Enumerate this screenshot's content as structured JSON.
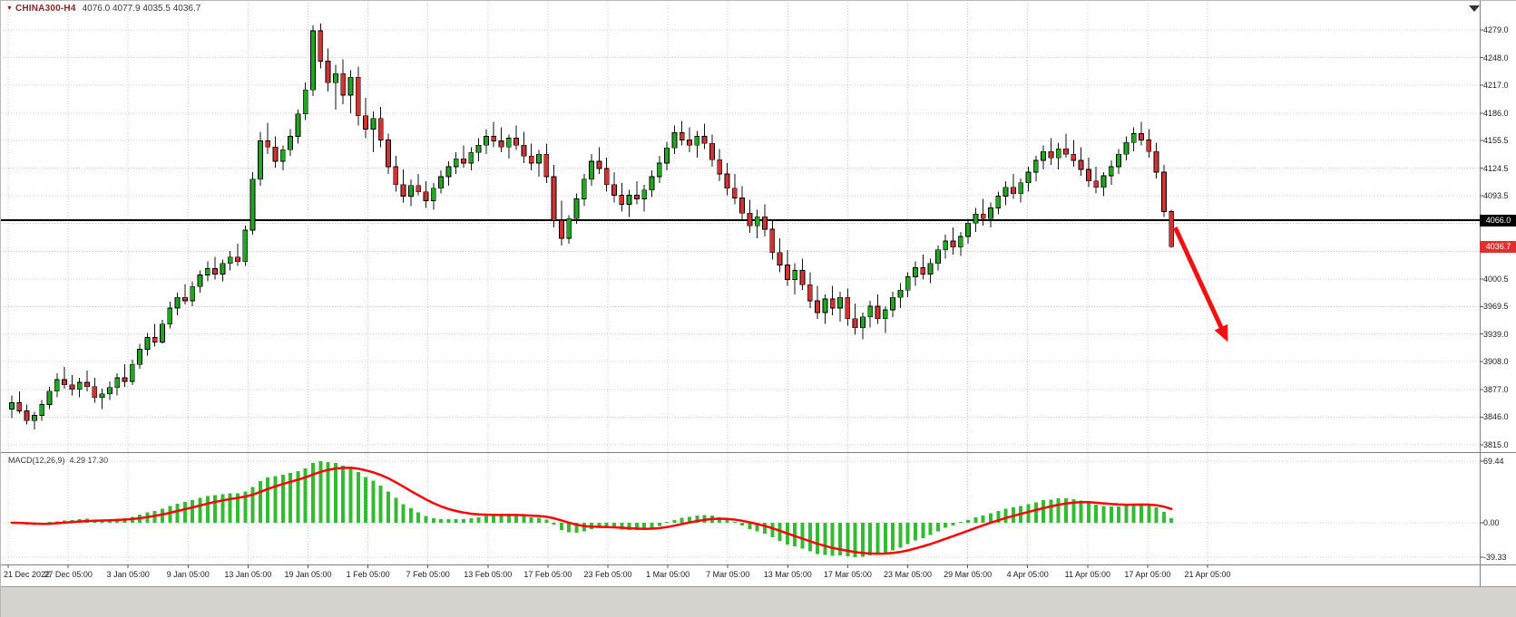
{
  "header": {
    "symbol": "CHINA300-H4",
    "ohlc": "4076.0 4077.9 4035.5 4036.7"
  },
  "macd": {
    "title": "MACD(12,26,9)",
    "values_text": "4.29 17.30"
  },
  "chart_data": {
    "type": "candlestick",
    "title": "CHINA300-H4",
    "symbol": "CHINA300",
    "timeframe": "H4",
    "last_bar_ohlc": [
      4076.0,
      4077.9,
      4035.5,
      4036.7
    ],
    "price_axis": {
      "labels": [
        {
          "text": "4279.0",
          "value": 4279.0
        },
        {
          "text": "4248.0",
          "value": 4248.0
        },
        {
          "text": "4217.0",
          "value": 4217.0
        },
        {
          "text": "4186.0",
          "value": 4186.0
        },
        {
          "text": "4155.5",
          "value": 4155.5
        },
        {
          "text": "4124.5",
          "value": 4124.5
        },
        {
          "text": "4093.5",
          "value": 4093.5
        },
        {
          "text": "4000.5",
          "value": 4000.5
        },
        {
          "text": "3969.5",
          "value": 3969.5
        },
        {
          "text": "3939.0",
          "value": 3939.0
        },
        {
          "text": "3908.0",
          "value": 3908.0
        },
        {
          "text": "3877.0",
          "value": 3877.0
        },
        {
          "text": "3846.0",
          "value": 3846.0
        },
        {
          "text": "3815.0",
          "value": 3815.0
        }
      ],
      "grid_extra": [
        4062.5,
        4031.5
      ]
    },
    "time_axis": {
      "labels": [
        "21 Dec 2022",
        "27 Dec 05:00",
        "3 Jan 05:00",
        "9 Jan 05:00",
        "13 Jan 05:00",
        "19 Jan 05:00",
        "1 Feb 05:00",
        "7 Feb 05:00",
        "13 Feb 05:00",
        "17 Feb 05:00",
        "23 Feb 05:00",
        "1 Mar 05:00",
        "7 Mar 05:00",
        "13 Mar 05:00",
        "17 Mar 05:00",
        "23 Mar 05:00",
        "29 Mar 05:00",
        "4 Apr 05:00",
        "11 Apr 05:00",
        "17 Apr 05:00",
        "21 Apr 05:00"
      ]
    },
    "horizontal_line": {
      "value": 4066.0,
      "label": "4066.0",
      "color": "#000000"
    },
    "current_price": {
      "value": 4036.7,
      "label": "4036.7",
      "tag_color": "#e02f2f"
    },
    "indicator": {
      "name": "MACD",
      "params": [
        12,
        26,
        9
      ],
      "title": "MACD(12,26,9)",
      "display_values": "4.29 17.30",
      "axis_labels": [
        {
          "text": "69.44",
          "value": 69.44
        },
        {
          "text": "0.00",
          "value": 0
        },
        {
          "text": "-39.33",
          "value": -39.33
        }
      ],
      "histogram_color": "#33bb33",
      "signal_color": "#ff0000"
    },
    "annotations": [
      {
        "type": "arrow",
        "color": "#f01212",
        "from": {
          "bar": 154.5,
          "price": 4058
        },
        "to": {
          "bar": 161.5,
          "price": 3930
        }
      }
    ],
    "colors": {
      "up": "#22a522",
      "down": "#cf3333",
      "wick": "#111111",
      "grid": "#c8c8c8",
      "background": "#ffffff",
      "divider": "#808080"
    },
    "candles": [
      [
        3855,
        3870,
        3845,
        3862
      ],
      [
        3862,
        3875,
        3850,
        3853
      ],
      [
        3853,
        3860,
        3838,
        3842
      ],
      [
        3842,
        3852,
        3832,
        3848
      ],
      [
        3848,
        3865,
        3842,
        3860
      ],
      [
        3860,
        3880,
        3855,
        3875
      ],
      [
        3875,
        3895,
        3868,
        3888
      ],
      [
        3888,
        3902,
        3878,
        3882
      ],
      [
        3882,
        3893,
        3870,
        3877
      ],
      [
        3877,
        3890,
        3868,
        3885
      ],
      [
        3885,
        3898,
        3875,
        3880
      ],
      [
        3880,
        3890,
        3862,
        3868
      ],
      [
        3868,
        3878,
        3855,
        3872
      ],
      [
        3872,
        3886,
        3865,
        3879
      ],
      [
        3879,
        3895,
        3870,
        3890
      ],
      [
        3890,
        3905,
        3880,
        3886
      ],
      [
        3886,
        3910,
        3882,
        3905
      ],
      [
        3905,
        3928,
        3900,
        3922
      ],
      [
        3922,
        3940,
        3915,
        3935
      ],
      [
        3935,
        3950,
        3925,
        3930
      ],
      [
        3930,
        3955,
        3928,
        3950
      ],
      [
        3950,
        3975,
        3945,
        3968
      ],
      [
        3968,
        3985,
        3960,
        3980
      ],
      [
        3980,
        3995,
        3972,
        3976
      ],
      [
        3976,
        3998,
        3970,
        3992
      ],
      [
        3992,
        4010,
        3985,
        4005
      ],
      [
        4005,
        4020,
        3998,
        4012
      ],
      [
        4012,
        4025,
        4000,
        4006
      ],
      [
        4006,
        4022,
        3998,
        4018
      ],
      [
        4018,
        4032,
        4010,
        4025
      ],
      [
        4025,
        4040,
        4015,
        4020
      ],
      [
        4020,
        4060,
        4015,
        4055
      ],
      [
        4055,
        4120,
        4050,
        4112
      ],
      [
        4112,
        4165,
        4105,
        4155
      ],
      [
        4155,
        4175,
        4140,
        4148
      ],
      [
        4148,
        4160,
        4125,
        4132
      ],
      [
        4132,
        4150,
        4122,
        4145
      ],
      [
        4145,
        4168,
        4138,
        4160
      ],
      [
        4160,
        4190,
        4152,
        4185
      ],
      [
        4185,
        4220,
        4178,
        4212
      ],
      [
        4212,
        4284,
        4205,
        4278
      ],
      [
        4278,
        4286,
        4236,
        4244
      ],
      [
        4244,
        4258,
        4210,
        4220
      ],
      [
        4220,
        4240,
        4190,
        4230
      ],
      [
        4230,
        4246,
        4196,
        4206
      ],
      [
        4206,
        4234,
        4186,
        4226
      ],
      [
        4226,
        4238,
        4172,
        4183
      ],
      [
        4183,
        4203,
        4158,
        4168
      ],
      [
        4168,
        4188,
        4142,
        4180
      ],
      [
        4180,
        4193,
        4148,
        4156
      ],
      [
        4156,
        4163,
        4118,
        4126
      ],
      [
        4126,
        4138,
        4098,
        4106
      ],
      [
        4106,
        4123,
        4086,
        4093
      ],
      [
        4093,
        4112,
        4082,
        4105
      ],
      [
        4105,
        4118,
        4094,
        4098
      ],
      [
        4098,
        4110,
        4080,
        4088
      ],
      [
        4088,
        4108,
        4078,
        4102
      ],
      [
        4102,
        4122,
        4096,
        4115
      ],
      [
        4115,
        4132,
        4105,
        4126
      ],
      [
        4126,
        4142,
        4118,
        4135
      ],
      [
        4135,
        4150,
        4125,
        4130
      ],
      [
        4130,
        4148,
        4122,
        4142
      ],
      [
        4142,
        4158,
        4132,
        4150
      ],
      [
        4150,
        4168,
        4140,
        4160
      ],
      [
        4160,
        4176,
        4148,
        4155
      ],
      [
        4155,
        4170,
        4142,
        4148
      ],
      [
        4148,
        4162,
        4135,
        4158
      ],
      [
        4158,
        4172,
        4145,
        4150
      ],
      [
        4150,
        4165,
        4130,
        4138
      ],
      [
        4138,
        4152,
        4122,
        4130
      ],
      [
        4130,
        4145,
        4115,
        4140
      ],
      [
        4140,
        4152,
        4108,
        4115
      ],
      [
        4115,
        4128,
        4058,
        4066
      ],
      [
        4066,
        4088,
        4038,
        4046
      ],
      [
        4046,
        4072,
        4040,
        4068
      ],
      [
        4068,
        4096,
        4062,
        4090
      ],
      [
        4090,
        4118,
        4082,
        4112
      ],
      [
        4112,
        4140,
        4105,
        4132
      ],
      [
        4132,
        4148,
        4118,
        4124
      ],
      [
        4124,
        4136,
        4098,
        4106
      ],
      [
        4106,
        4120,
        4086,
        4094
      ],
      [
        4094,
        4108,
        4076,
        4084
      ],
      [
        4084,
        4100,
        4070,
        4094
      ],
      [
        4094,
        4110,
        4084,
        4090
      ],
      [
        4090,
        4106,
        4076,
        4100
      ],
      [
        4100,
        4122,
        4092,
        4115
      ],
      [
        4115,
        4138,
        4108,
        4130
      ],
      [
        4130,
        4154,
        4122,
        4147
      ],
      [
        4147,
        4172,
        4140,
        4164
      ],
      [
        4164,
        4177,
        4150,
        4156
      ],
      [
        4156,
        4170,
        4142,
        4150
      ],
      [
        4150,
        4166,
        4136,
        4160
      ],
      [
        4160,
        4174,
        4146,
        4152
      ],
      [
        4152,
        4162,
        4126,
        4134
      ],
      [
        4134,
        4146,
        4110,
        4118
      ],
      [
        4118,
        4130,
        4094,
        4102
      ],
      [
        4102,
        4118,
        4084,
        4091
      ],
      [
        4091,
        4104,
        4066,
        4074
      ],
      [
        4074,
        4089,
        4052,
        4060
      ],
      [
        4060,
        4078,
        4046,
        4070
      ],
      [
        4070,
        4084,
        4048,
        4056
      ],
      [
        4056,
        4066,
        4022,
        4030
      ],
      [
        4030,
        4046,
        4008,
        4016
      ],
      [
        4016,
        4033,
        3993,
        4000
      ],
      [
        4000,
        4018,
        3983,
        4010
      ],
      [
        4010,
        4023,
        3988,
        3994
      ],
      [
        3994,
        4008,
        3968,
        3976
      ],
      [
        3976,
        3993,
        3956,
        3963
      ],
      [
        3963,
        3983,
        3950,
        3978
      ],
      [
        3978,
        3993,
        3960,
        3968
      ],
      [
        3968,
        3986,
        3953,
        3980
      ],
      [
        3980,
        3990,
        3948,
        3956
      ],
      [
        3956,
        3973,
        3938,
        3946
      ],
      [
        3946,
        3963,
        3933,
        3958
      ],
      [
        3958,
        3976,
        3946,
        3970
      ],
      [
        3970,
        3983,
        3950,
        3956
      ],
      [
        3956,
        3970,
        3940,
        3966
      ],
      [
        3966,
        3986,
        3958,
        3980
      ],
      [
        3980,
        3996,
        3968,
        3988
      ],
      [
        3988,
        4008,
        3980,
        4003
      ],
      [
        4003,
        4020,
        3993,
        4013
      ],
      [
        4013,
        4028,
        4000,
        4006
      ],
      [
        4006,
        4023,
        3996,
        4018
      ],
      [
        4018,
        4038,
        4010,
        4033
      ],
      [
        4033,
        4050,
        4023,
        4043
      ],
      [
        4043,
        4058,
        4028,
        4036
      ],
      [
        4036,
        4053,
        4026,
        4048
      ],
      [
        4048,
        4068,
        4040,
        4063
      ],
      [
        4063,
        4080,
        4053,
        4073
      ],
      [
        4073,
        4090,
        4060,
        4068
      ],
      [
        4068,
        4086,
        4058,
        4080
      ],
      [
        4080,
        4098,
        4073,
        4093
      ],
      [
        4093,
        4110,
        4083,
        4103
      ],
      [
        4103,
        4118,
        4090,
        4096
      ],
      [
        4096,
        4113,
        4086,
        4108
      ],
      [
        4108,
        4126,
        4098,
        4120
      ],
      [
        4120,
        4138,
        4110,
        4133
      ],
      [
        4133,
        4150,
        4123,
        4143
      ],
      [
        4143,
        4158,
        4128,
        4136
      ],
      [
        4136,
        4153,
        4123,
        4146
      ],
      [
        4146,
        4163,
        4136,
        4140
      ],
      [
        4140,
        4156,
        4126,
        4133
      ],
      [
        4133,
        4148,
        4116,
        4123
      ],
      [
        4123,
        4136,
        4103,
        4110
      ],
      [
        4110,
        4126,
        4096,
        4103
      ],
      [
        4103,
        4120,
        4093,
        4116
      ],
      [
        4116,
        4133,
        4106,
        4126
      ],
      [
        4126,
        4146,
        4118,
        4140
      ],
      [
        4140,
        4160,
        4133,
        4153
      ],
      [
        4153,
        4170,
        4143,
        4163
      ],
      [
        4163,
        4176,
        4150,
        4156
      ],
      [
        4156,
        4168,
        4136,
        4143
      ],
      [
        4143,
        4153,
        4113,
        4120
      ],
      [
        4120,
        4128,
        4070,
        4076
      ],
      [
        4076,
        4077.9,
        4035.5,
        4036.7
      ]
    ]
  }
}
